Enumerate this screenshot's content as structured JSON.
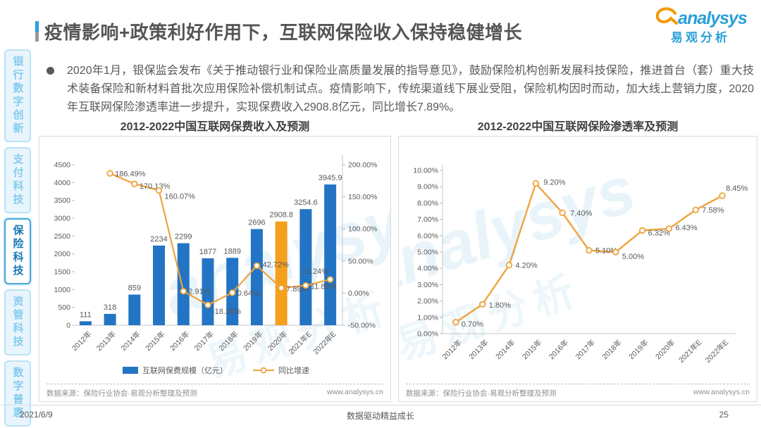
{
  "header": {
    "title": "疫情影响+政策利好作用下，互联网保险收入保持稳健增长",
    "logo": {
      "brand": "analysys",
      "brand_cn": "易观分析"
    }
  },
  "sidebar": {
    "items": [
      {
        "label": "银行数字创新",
        "active": false
      },
      {
        "label": "支付科技",
        "active": false
      },
      {
        "label": "保险科技",
        "active": true
      },
      {
        "label": "资管科技",
        "active": false
      },
      {
        "label": "数字普惠",
        "active": false
      }
    ]
  },
  "bullet": {
    "text": "2020年1月，银保监会发布《关于推动银行业和保险业高质量发展的指导意见》，鼓励保险机构创新发展科技保险，推进首台（套）重大技术装备保险和新材料首批次应用保险补偿机制试点。疫情影响下，传统渠道线下展业受阻，保险机构因时而动，加大线上营销力度，2020年互联网保险渗透率进一步提升，实现保费收入2908.8亿元，同比增长7.89%。"
  },
  "chart_data": [
    {
      "type": "bar",
      "title": "2012-2022中国互联网保费收入及预测",
      "categories": [
        "2012年",
        "2013年",
        "2014年",
        "2015年",
        "2016年",
        "2017年",
        "2018年",
        "2019年",
        "2020年",
        "2021年E",
        "2022年E"
      ],
      "series": [
        {
          "name": "互联网保费规模（亿元）",
          "type": "bar",
          "values": [
            111,
            318,
            859,
            2234,
            2299,
            1877,
            1889,
            2696,
            2908.8,
            3254.6,
            3945.9
          ],
          "color": "#2374c4",
          "highlight": {
            "index": 8,
            "color": "#f5a01d"
          }
        },
        {
          "name": "同比增速",
          "type": "line",
          "unit": "%",
          "values": [
            null,
            186.49,
            170.13,
            160.07,
            2.91,
            -18.36,
            0.64,
            42.72,
            7.89,
            11.89,
            21.24
          ],
          "color": "#eea33c"
        }
      ],
      "y_left": {
        "min": 0,
        "max": 4500,
        "step": 500
      },
      "y_right": {
        "min": -50,
        "max": 200,
        "step": 50,
        "format": "percent2"
      },
      "legend_position": "bottom",
      "grid": false
    },
    {
      "type": "line",
      "title": "2012-2022中国互联网保险渗透率及预测",
      "categories": [
        "2012年",
        "2013年",
        "2014年",
        "2015年",
        "2016年",
        "2017年",
        "2018年",
        "2019年",
        "2020年",
        "2021年E",
        "2022年E"
      ],
      "series": [
        {
          "name": "渗透率",
          "type": "line",
          "unit": "%",
          "values": [
            0.7,
            1.8,
            4.2,
            9.2,
            7.4,
            5.1,
            5.0,
            6.32,
            6.43,
            7.58,
            8.45
          ],
          "color": "#eea33c"
        }
      ],
      "y": {
        "min": 0,
        "max": 10,
        "step": 1,
        "format": "percent2"
      },
      "grid": false
    }
  ],
  "source": {
    "label": "数据来源：保险行业协会·易观分析整理及预测",
    "url": "www.analysys.cn"
  },
  "watermark": {
    "brand": "analysys",
    "brand_cn": "易观分析"
  },
  "footer": {
    "date": "2021/6/9",
    "slogan": "数据驱动精益成长",
    "page": "25"
  }
}
